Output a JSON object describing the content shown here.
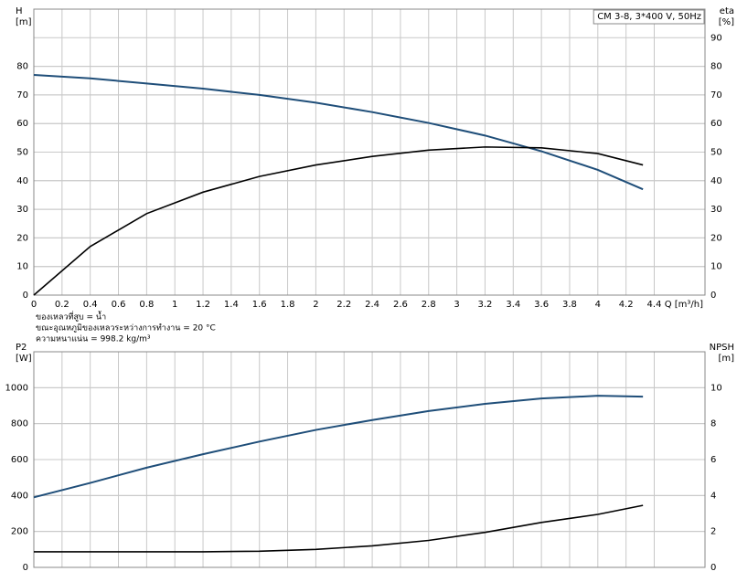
{
  "chart_data": [
    {
      "type": "line",
      "ylabel": "H",
      "yunit": "[m]",
      "y2label": "eta",
      "y2unit": "[%]",
      "legend_box": "CM 3-8, 3*400 V, 50Hz",
      "xlabel": "Q [m³/h]",
      "x": [
        0,
        0.4,
        0.8,
        1.2,
        1.6,
        2.0,
        2.4,
        2.8,
        3.2,
        3.6,
        4.0,
        4.32
      ],
      "series": [
        {
          "color": "#1f4e79",
          "values": [
            77,
            75.8,
            74,
            72.2,
            70,
            67.3,
            64,
            60.2,
            55.8,
            50.3,
            43.8,
            37
          ]
        },
        {
          "color": "#000000",
          "axis": "y2",
          "values": [
            0,
            17,
            28.5,
            36,
            41.5,
            45.5,
            48.5,
            50.7,
            51.8,
            51.5,
            49.5,
            45.5
          ]
        }
      ],
      "xlim": [
        0,
        4.76
      ],
      "xticks": [
        0,
        0.2,
        0.4,
        0.6,
        0.8,
        1.0,
        1.2,
        1.4,
        1.6,
        1.8,
        2.0,
        2.2,
        2.4,
        2.6,
        2.8,
        3.0,
        3.2,
        3.4,
        3.6,
        3.8,
        4.0,
        4.2,
        4.4
      ],
      "ylim": [
        0,
        100
      ],
      "yticks": [
        0,
        10,
        20,
        30,
        40,
        50,
        60,
        70,
        80
      ],
      "y2lim": [
        0,
        100
      ],
      "y2ticks": [
        0,
        10,
        20,
        30,
        40,
        50,
        60,
        70,
        80,
        90
      ],
      "grid": true,
      "notes": [
        "ของเหลวที่สูบ = น้ำ",
        "ขณะอุณหภูมิของเหลวระหว่างการทำงาน = 20 °C",
        "ความหนาแน่น = 998.2 kg/m³"
      ]
    },
    {
      "type": "line",
      "ylabel": "P2",
      "yunit": "[W]",
      "y2label": "NPSH",
      "y2unit": "[m]",
      "x": [
        0,
        0.4,
        0.8,
        1.2,
        1.6,
        2.0,
        2.4,
        2.8,
        3.2,
        3.6,
        4.0,
        4.32
      ],
      "series": [
        {
          "color": "#1f4e79",
          "values": [
            390,
            470,
            555,
            630,
            700,
            765,
            820,
            870,
            910,
            940,
            955,
            950
          ]
        },
        {
          "color": "#000000",
          "axis": "y2",
          "values": [
            0.87,
            0.87,
            0.87,
            0.87,
            0.9,
            1.0,
            1.2,
            1.5,
            1.95,
            2.5,
            2.95,
            3.45
          ]
        }
      ],
      "xlim": [
        0,
        4.76
      ],
      "ylim": [
        0,
        1200
      ],
      "yticks": [
        0,
        200,
        400,
        600,
        800,
        1000
      ],
      "y2lim": [
        0,
        12
      ],
      "y2ticks": [
        0,
        2,
        4,
        6,
        8,
        10
      ],
      "grid": true
    }
  ]
}
